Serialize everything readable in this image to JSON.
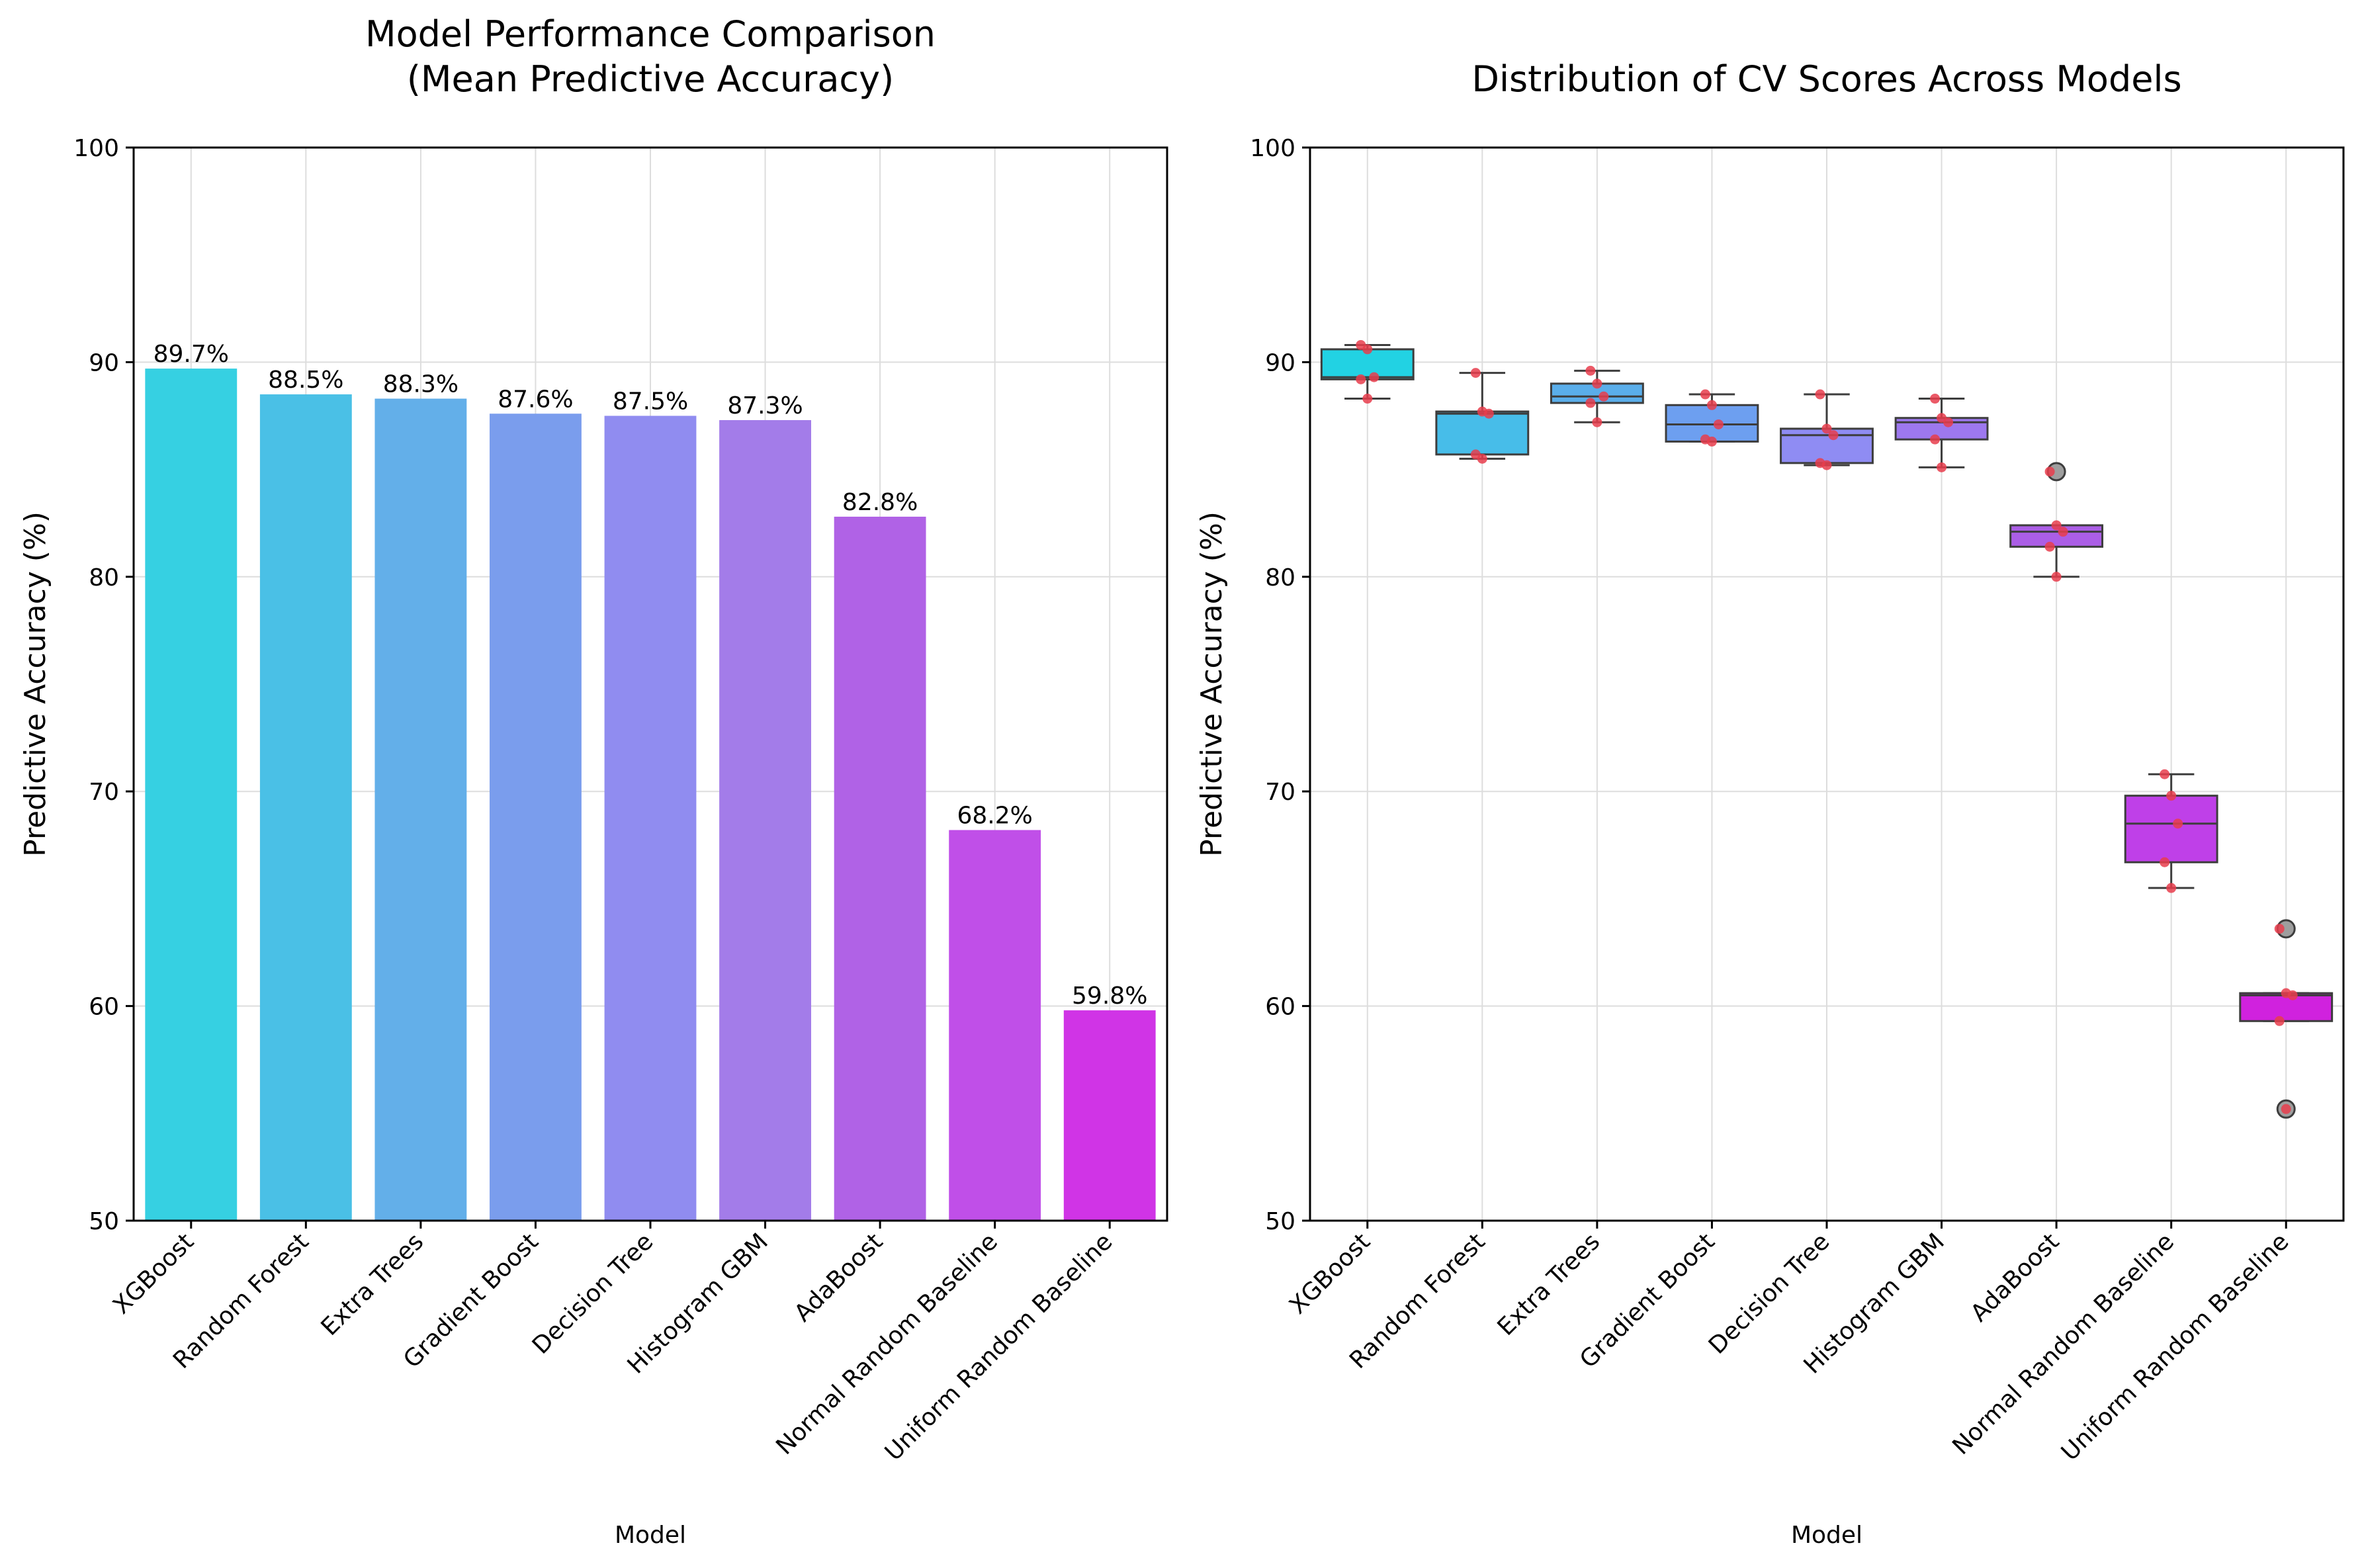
{
  "chart_data": [
    {
      "type": "bar",
      "title_lines": [
        "Model Performance Comparison",
        "(Mean Predictive Accuracy)"
      ],
      "xlabel": "Model",
      "ylabel": "Predictive Accuracy (%)",
      "ylim": [
        50,
        100
      ],
      "yticks": [
        50,
        60,
        70,
        80,
        90,
        100
      ],
      "grid": true,
      "categories": [
        "XGBoost",
        "Random Forest",
        "Extra Trees",
        "Gradient Boost",
        "Decision Tree",
        "Histogram GBM",
        "AdaBoost",
        "Normal Random Baseline",
        "Uniform Random Baseline"
      ],
      "values": [
        89.7,
        88.5,
        88.3,
        87.6,
        87.5,
        87.3,
        82.8,
        68.2,
        59.8
      ],
      "value_labels": [
        "89.7%",
        "88.5%",
        "88.3%",
        "87.6%",
        "87.5%",
        "87.3%",
        "82.8%",
        "68.2%",
        "59.8%"
      ],
      "colors": [
        "#36d0e2",
        "#4ac0e6",
        "#63afe9",
        "#7a9ded",
        "#908cf0",
        "#a37ce9",
        "#b062e6",
        "#c04fe8",
        "#d034e6"
      ]
    },
    {
      "type": "box",
      "title": "Distribution of CV Scores Across Models",
      "xlabel": "Model",
      "ylabel": "Predictive Accuracy (%)",
      "ylim": [
        50,
        100
      ],
      "yticks": [
        50,
        60,
        70,
        80,
        90,
        100
      ],
      "grid": true,
      "categories": [
        "XGBoost",
        "Random Forest",
        "Extra Trees",
        "Gradient Boost",
        "Decision Tree",
        "Histogram GBM",
        "AdaBoost",
        "Normal Random Baseline",
        "Uniform Random Baseline"
      ],
      "colors": [
        "#22d2e3",
        "#47bde9",
        "#5aaeea",
        "#6d9ff0",
        "#8f8cf3",
        "#9d78ee",
        "#ab5ee6",
        "#bf40e8",
        "#d022de"
      ],
      "boxes": [
        {
          "q1": 89.2,
          "median": 89.3,
          "q3": 90.6,
          "whisker_low": 88.3,
          "whisker_high": 90.8,
          "outliers": []
        },
        {
          "q1": 85.7,
          "median": 87.6,
          "q3": 87.7,
          "whisker_low": 85.5,
          "whisker_high": 89.5,
          "outliers": []
        },
        {
          "q1": 88.1,
          "median": 88.4,
          "q3": 89.0,
          "whisker_low": 87.2,
          "whisker_high": 89.6,
          "outliers": []
        },
        {
          "q1": 86.3,
          "median": 87.1,
          "q3": 88.0,
          "whisker_low": 86.3,
          "whisker_high": 88.5,
          "outliers": []
        },
        {
          "q1": 85.3,
          "median": 86.6,
          "q3": 86.9,
          "whisker_low": 85.2,
          "whisker_high": 88.5,
          "outliers": []
        },
        {
          "q1": 86.4,
          "median": 87.2,
          "q3": 87.4,
          "whisker_low": 85.1,
          "whisker_high": 88.3,
          "outliers": []
        },
        {
          "q1": 81.4,
          "median": 82.1,
          "q3": 82.4,
          "whisker_low": 80.0,
          "whisker_high": 82.4,
          "outliers": [
            84.9
          ]
        },
        {
          "q1": 66.7,
          "median": 68.5,
          "q3": 69.8,
          "whisker_low": 65.5,
          "whisker_high": 70.8,
          "outliers": []
        },
        {
          "q1": 59.3,
          "median": 60.5,
          "q3": 60.6,
          "whisker_low": 59.3,
          "whisker_high": 60.6,
          "outliers": [
            63.6,
            55.2
          ]
        }
      ],
      "points": [
        [
          90.8,
          90.6,
          89.3,
          89.2,
          88.3
        ],
        [
          89.5,
          87.7,
          87.6,
          85.7,
          85.5
        ],
        [
          89.6,
          89.0,
          88.4,
          88.1,
          87.2
        ],
        [
          88.5,
          88.0,
          87.1,
          86.4,
          86.3
        ],
        [
          88.5,
          86.9,
          86.6,
          85.3,
          85.2
        ],
        [
          88.3,
          87.4,
          87.2,
          86.4,
          85.1
        ],
        [
          84.9,
          82.4,
          82.1,
          81.4,
          80.0
        ],
        [
          70.8,
          69.8,
          68.5,
          66.7,
          65.5
        ],
        [
          63.6,
          60.6,
          60.5,
          59.3,
          55.2
        ]
      ]
    }
  ]
}
